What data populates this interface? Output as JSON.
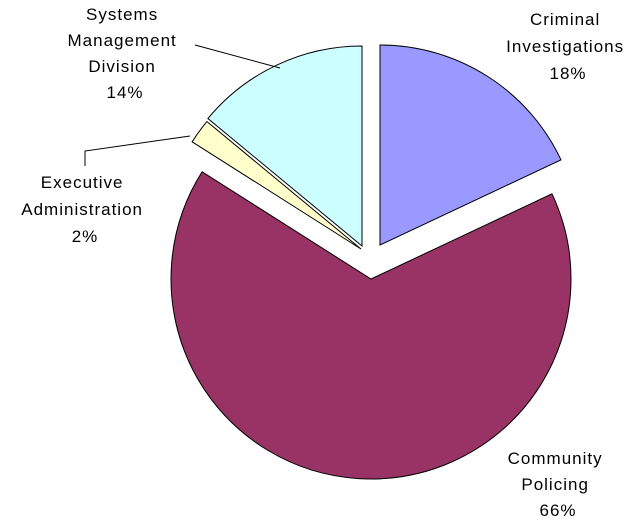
{
  "chart_data": {
    "type": "pie",
    "title": "",
    "slices": [
      {
        "label_lines": [
          "Criminal",
          "Investigations"
        ],
        "pct_label": "18%",
        "value": 18,
        "color": "#9999ff"
      },
      {
        "label_lines": [
          "Community",
          "Policing"
        ],
        "pct_label": "66%",
        "value": 66,
        "color": "#993366"
      },
      {
        "label_lines": [
          "Executive",
          "Administration"
        ],
        "pct_label": "2%",
        "value": 2,
        "color": "#ffffcc"
      },
      {
        "label_lines": [
          "Systems",
          "Management",
          "Division"
        ],
        "pct_label": "14%",
        "value": 14,
        "color": "#ccffff"
      }
    ],
    "exploded": true,
    "start_angle_deg": 0,
    "direction": "clockwise",
    "legend": "none"
  }
}
